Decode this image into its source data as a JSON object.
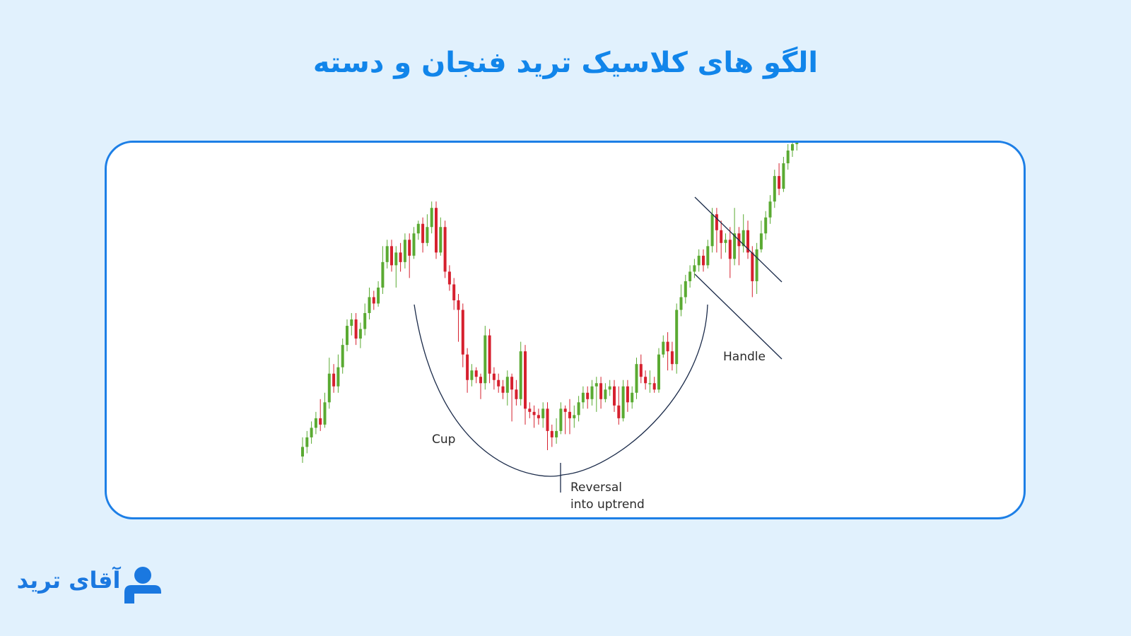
{
  "header": {
    "title": "الگو های کلاسیک ترید فنجان و دسته"
  },
  "brand": {
    "logo_text": "آقای ترید",
    "color": "#1a78e0"
  },
  "colors": {
    "background": "#e1f1fd",
    "title": "#1185ea",
    "card_border": "#1d7fe6",
    "bullish": "#5aaa32",
    "bearish": "#d6202e",
    "line": "#1b2b4a"
  },
  "chart_data": {
    "type": "candlestick",
    "title": "",
    "xlabel": "",
    "ylabel": "",
    "axes_visible": false,
    "grid": false,
    "ylim": [
      0,
      100
    ],
    "candles": [
      [
        2,
        5,
        0,
        8
      ],
      [
        5,
        8,
        3,
        10
      ],
      [
        8,
        11,
        6,
        13
      ],
      [
        11,
        14,
        9,
        16
      ],
      [
        14,
        12,
        10,
        20
      ],
      [
        12,
        19,
        11,
        22
      ],
      [
        19,
        28,
        17,
        33
      ],
      [
        28,
        24,
        22,
        31
      ],
      [
        24,
        30,
        22,
        34
      ],
      [
        30,
        37,
        28,
        39
      ],
      [
        37,
        43,
        35,
        45
      ],
      [
        43,
        45,
        40,
        47
      ],
      [
        45,
        39,
        37,
        47
      ],
      [
        39,
        42,
        36,
        44
      ],
      [
        42,
        47,
        40,
        50
      ],
      [
        47,
        52,
        45,
        55
      ],
      [
        52,
        50,
        48,
        54
      ],
      [
        50,
        55,
        49,
        57
      ],
      [
        55,
        63,
        53,
        68
      ],
      [
        63,
        68,
        61,
        70
      ],
      [
        68,
        62,
        60,
        70
      ],
      [
        62,
        66,
        55,
        68
      ],
      [
        66,
        63,
        60,
        69
      ],
      [
        63,
        70,
        61,
        72
      ],
      [
        70,
        65,
        58,
        72
      ],
      [
        65,
        72,
        64,
        74
      ],
      [
        72,
        75,
        70,
        76
      ],
      [
        75,
        69,
        66,
        77
      ],
      [
        69,
        74,
        68,
        78
      ],
      [
        74,
        80,
        72,
        82
      ],
      [
        80,
        66,
        64,
        82
      ],
      [
        66,
        74,
        65,
        77
      ],
      [
        74,
        60,
        58,
        76
      ],
      [
        60,
        56,
        54,
        62
      ],
      [
        56,
        51,
        48,
        58
      ],
      [
        51,
        48,
        38,
        53
      ],
      [
        48,
        34,
        30,
        50
      ],
      [
        34,
        26,
        22,
        36
      ],
      [
        26,
        29,
        24,
        31
      ],
      [
        29,
        27,
        25,
        30
      ],
      [
        27,
        25,
        20,
        28
      ],
      [
        25,
        40,
        23,
        43
      ],
      [
        40,
        28,
        25,
        42
      ],
      [
        28,
        26,
        23,
        30
      ],
      [
        26,
        24,
        22,
        28
      ],
      [
        24,
        22,
        20,
        26
      ],
      [
        22,
        27,
        18,
        29
      ],
      [
        27,
        23,
        13,
        28
      ],
      [
        23,
        20,
        18,
        26
      ],
      [
        20,
        35,
        18,
        38
      ],
      [
        35,
        17,
        12,
        37
      ],
      [
        17,
        16,
        14,
        19
      ],
      [
        16,
        15,
        11,
        18
      ],
      [
        15,
        14,
        12,
        17
      ],
      [
        14,
        17,
        11,
        19
      ],
      [
        17,
        10,
        4,
        19
      ],
      [
        10,
        8,
        5,
        12
      ],
      [
        8,
        10,
        6,
        14
      ],
      [
        10,
        17,
        9,
        19
      ],
      [
        17,
        16,
        9,
        18
      ],
      [
        16,
        14,
        9,
        20
      ],
      [
        14,
        15,
        11,
        18
      ],
      [
        15,
        19,
        13,
        21
      ],
      [
        19,
        22,
        17,
        24
      ],
      [
        22,
        20,
        17,
        24
      ],
      [
        20,
        24,
        18,
        26
      ],
      [
        24,
        25,
        16,
        27
      ],
      [
        25,
        20,
        17,
        27
      ],
      [
        20,
        23,
        19,
        25
      ],
      [
        23,
        24,
        21,
        26
      ],
      [
        24,
        18,
        16,
        26
      ],
      [
        18,
        14,
        12,
        24
      ],
      [
        14,
        24,
        13,
        26
      ],
      [
        24,
        19,
        16,
        26
      ],
      [
        19,
        22,
        17,
        24
      ],
      [
        22,
        31,
        20,
        33
      ],
      [
        31,
        27,
        25,
        34
      ],
      [
        27,
        25,
        23,
        29
      ],
      [
        25,
        25,
        22,
        29
      ],
      [
        25,
        23,
        22,
        27
      ],
      [
        23,
        34,
        22,
        36
      ],
      [
        34,
        38,
        33,
        40
      ],
      [
        38,
        35,
        29,
        41
      ],
      [
        35,
        31,
        29,
        38
      ],
      [
        31,
        48,
        28,
        50
      ],
      [
        48,
        52,
        46,
        56
      ],
      [
        52,
        57,
        50,
        59
      ],
      [
        57,
        60,
        55,
        62
      ],
      [
        60,
        62,
        58,
        64
      ],
      [
        62,
        65,
        60,
        67
      ],
      [
        65,
        62,
        60,
        67
      ],
      [
        62,
        68,
        61,
        70
      ],
      [
        68,
        78,
        66,
        80
      ],
      [
        78,
        73,
        66,
        80
      ],
      [
        73,
        69,
        64,
        76
      ],
      [
        69,
        70,
        66,
        72
      ],
      [
        70,
        64,
        58,
        74
      ],
      [
        64,
        72,
        62,
        80
      ],
      [
        72,
        68,
        62,
        74
      ],
      [
        68,
        73,
        66,
        78
      ],
      [
        73,
        66,
        64,
        76
      ],
      [
        66,
        57,
        52,
        68
      ],
      [
        57,
        67,
        53,
        69
      ],
      [
        67,
        72,
        66,
        76
      ],
      [
        72,
        77,
        70,
        79
      ],
      [
        77,
        82,
        75,
        84
      ],
      [
        82,
        90,
        80,
        92
      ],
      [
        90,
        86,
        84,
        94
      ],
      [
        86,
        94,
        85,
        96
      ],
      [
        94,
        98,
        92,
        100
      ],
      [
        98,
        100,
        96,
        102
      ],
      [
        100,
        104,
        98,
        106
      ]
    ],
    "annotations": [
      {
        "label": "Cup"
      },
      {
        "label": "Reversal"
      },
      {
        "label": "into uptrend"
      },
      {
        "label": "Handle"
      }
    ]
  }
}
